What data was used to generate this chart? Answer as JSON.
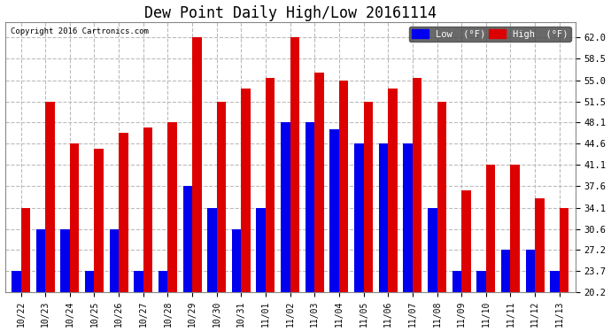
{
  "title": "Dew Point Daily High/Low 20161114",
  "copyright": "Copyright 2016 Cartronics.com",
  "dates": [
    "10/22",
    "10/23",
    "10/24",
    "10/25",
    "10/26",
    "10/27",
    "10/28",
    "10/29",
    "10/30",
    "10/31",
    "11/01",
    "11/02",
    "11/03",
    "11/04",
    "11/05",
    "11/06",
    "11/07",
    "11/08",
    "11/09",
    "11/10",
    "11/11",
    "11/12",
    "11/13"
  ],
  "low": [
    23.7,
    30.6,
    30.6,
    23.7,
    30.6,
    23.7,
    23.7,
    37.6,
    34.1,
    30.6,
    34.1,
    48.1,
    48.1,
    47.0,
    44.6,
    44.6,
    44.6,
    34.1,
    23.7,
    23.7,
    27.2,
    27.2,
    23.7
  ],
  "high": [
    34.1,
    51.5,
    44.6,
    43.7,
    46.4,
    47.3,
    48.1,
    62.0,
    51.5,
    53.6,
    55.4,
    62.0,
    56.3,
    55.0,
    51.5,
    53.6,
    55.4,
    51.5,
    37.0,
    41.1,
    41.1,
    35.6,
    34.1
  ],
  "low_color": "#0000ee",
  "high_color": "#dd0000",
  "bg_color": "#ffffff",
  "grid_color": "#bbbbbb",
  "yticks": [
    20.2,
    23.7,
    27.2,
    30.6,
    34.1,
    37.6,
    41.1,
    44.6,
    48.1,
    51.5,
    55.0,
    58.5,
    62.0
  ],
  "ymin": 20.2,
  "ymax": 64.5,
  "bar_width": 0.38,
  "figwidth": 6.9,
  "figheight": 3.75,
  "dpi": 100
}
